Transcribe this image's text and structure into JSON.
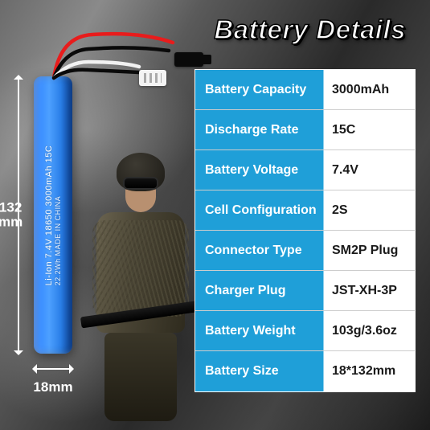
{
  "title": "Battery Details",
  "dimensions": {
    "height_label": "132",
    "height_unit": "mm",
    "width_label": "18mm"
  },
  "battery_label": {
    "line1": "Li-Ion 7.4V 18650 3000mAh 15C",
    "line2": "22.2Wh MADE IN CHINA"
  },
  "specs": [
    {
      "label": "Battery Capacity",
      "value": "3000mAh"
    },
    {
      "label": "Discharge Rate",
      "value": "15C"
    },
    {
      "label": "Battery Voltage",
      "value": "7.4V"
    },
    {
      "label": "Cell Configuration",
      "value": "2S"
    },
    {
      "label": "Connector Type",
      "value": "SM2P Plug"
    },
    {
      "label": "Charger Plug",
      "value": "JST-XH-3P"
    },
    {
      "label": "Battery Weight",
      "value": "103g/3.6oz"
    },
    {
      "label": "Battery Size",
      "value": "18*132mm"
    }
  ],
  "colors": {
    "accent": "#1f9fd8",
    "battery": "#3a8eff",
    "wire_red": "#e81c1c",
    "wire_white": "#f2f2f2",
    "wire_black": "#0a0a0a"
  }
}
